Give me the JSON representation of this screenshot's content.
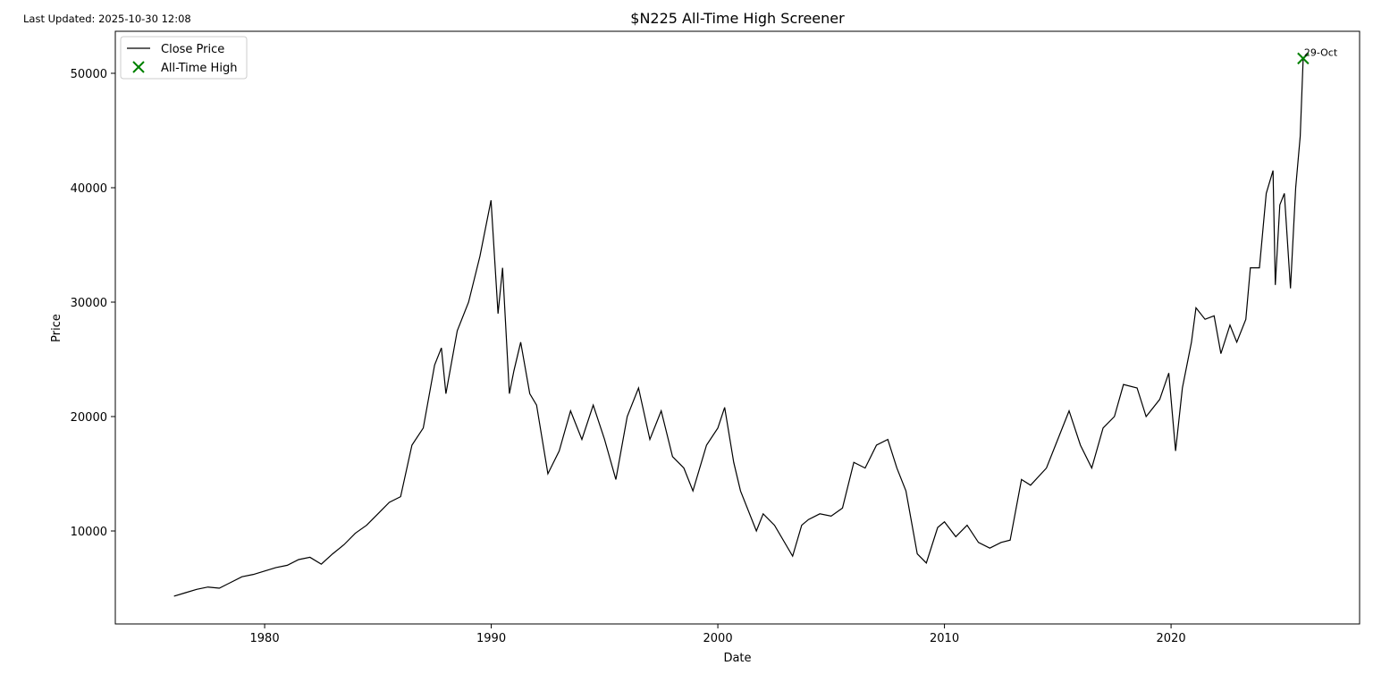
{
  "chart_data": {
    "type": "line",
    "title": "$N225 All-Time High Screener",
    "updated": "Last Updated: 2025-10-30 12:08",
    "x_label": "Date",
    "y_label": "Price",
    "x": [
      1976.0,
      1976.5,
      1977.0,
      1977.5,
      1978.0,
      1978.5,
      1979.0,
      1979.5,
      1980.0,
      1980.5,
      1981.0,
      1981.5,
      1982.0,
      1982.5,
      1983.0,
      1983.5,
      1984.0,
      1984.5,
      1985.0,
      1985.5,
      1986.0,
      1986.5,
      1987.0,
      1987.5,
      1987.8,
      1988.0,
      1988.5,
      1989.0,
      1989.5,
      1989.99,
      1990.3,
      1990.5,
      1990.8,
      1991.0,
      1991.3,
      1991.7,
      1992.0,
      1992.5,
      1993.0,
      1993.5,
      1994.0,
      1994.5,
      1995.0,
      1995.5,
      1996.0,
      1996.5,
      1997.0,
      1997.5,
      1998.0,
      1998.5,
      1998.9,
      1999.5,
      2000.0,
      2000.3,
      2000.7,
      2001.0,
      2001.7,
      2002.0,
      2002.5,
      2003.3,
      2003.7,
      2004.0,
      2004.5,
      2005.0,
      2005.5,
      2006.0,
      2006.5,
      2007.0,
      2007.5,
      2007.9,
      2008.3,
      2008.8,
      2009.2,
      2009.7,
      2010.0,
      2010.5,
      2011.0,
      2011.5,
      2012.0,
      2012.5,
      2012.9,
      2013.4,
      2013.8,
      2014.5,
      2014.9,
      2015.5,
      2016.0,
      2016.5,
      2017.0,
      2017.5,
      2017.9,
      2018.5,
      2018.9,
      2019.5,
      2019.9,
      2020.2,
      2020.5,
      2020.9,
      2021.1,
      2021.5,
      2021.9,
      2022.2,
      2022.6,
      2022.9,
      2023.3,
      2023.5,
      2023.9,
      2024.2,
      2024.5,
      2024.6,
      2024.8,
      2025.0,
      2025.27,
      2025.5,
      2025.7,
      2025.83
    ],
    "series": [
      {
        "name": "Close Price",
        "color": "#000000",
        "values": [
          4300,
          4600,
          4900,
          5100,
          5000,
          5500,
          6000,
          6200,
          6500,
          6800,
          7000,
          7500,
          7700,
          7100,
          8000,
          8800,
          9800,
          10500,
          11500,
          12500,
          13000,
          17500,
          19000,
          24500,
          26000,
          22000,
          27500,
          30000,
          34000,
          38900,
          29000,
          33000,
          22000,
          24000,
          26500,
          22000,
          21000,
          15000,
          17000,
          20500,
          18000,
          21000,
          18000,
          14500,
          20000,
          22500,
          18000,
          20500,
          16500,
          15500,
          13500,
          17500,
          19000,
          20800,
          16000,
          13500,
          10000,
          11500,
          10500,
          7800,
          10500,
          11000,
          11500,
          11300,
          12000,
          16000,
          15500,
          17500,
          18000,
          15500,
          13500,
          8000,
          7200,
          10300,
          10800,
          9500,
          10500,
          9000,
          8500,
          9000,
          9200,
          14500,
          14000,
          15500,
          17500,
          20500,
          17500,
          15500,
          19000,
          20000,
          22800,
          22500,
          20000,
          21500,
          23800,
          17000,
          22500,
          26500,
          29500,
          28500,
          28800,
          25500,
          28000,
          26500,
          28500,
          33000,
          33000,
          39500,
          41500,
          31500,
          38500,
          39500,
          31200,
          40000,
          44500,
          51300
        ]
      }
    ],
    "ath": {
      "name": "All-Time High",
      "color": "#008000",
      "x": 2025.83,
      "y": 51300,
      "label": "29-Oct"
    },
    "xlim": [
      1973.41,
      2028.32
    ],
    "ylim": [
      1875,
      53672
    ],
    "xticks": [
      1980,
      1990,
      2000,
      2010,
      2020
    ],
    "yticks": [
      10000,
      20000,
      30000,
      40000,
      50000
    ],
    "legend": "upper left"
  }
}
